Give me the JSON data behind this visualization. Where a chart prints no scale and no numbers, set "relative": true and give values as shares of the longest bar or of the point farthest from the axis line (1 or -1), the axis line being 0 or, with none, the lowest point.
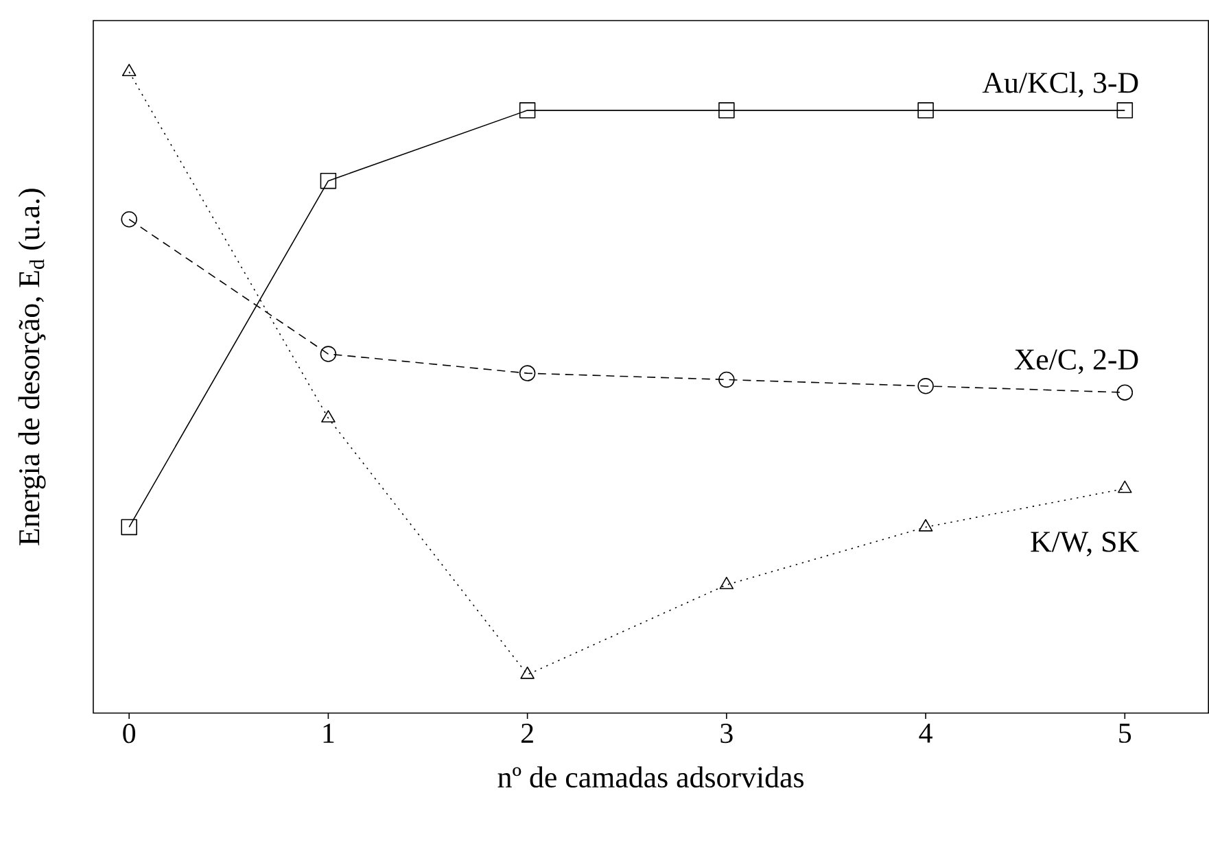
{
  "chart_data": {
    "type": "line",
    "relative": true,
    "xlabel": "nº de camadas adsorvidas",
    "ylabel": "Energia de desorção, E$_{d}$ (u.a.)",
    "x": [
      0,
      1,
      2,
      3,
      4,
      5
    ],
    "xlim": [
      -0.18,
      5.42
    ],
    "xticks": [
      0,
      1,
      2,
      3,
      4,
      5
    ],
    "legend": false,
    "series": [
      {
        "name": "Au/KCl, 3-D",
        "color": "#000000",
        "marker": "square",
        "line_style": "solid",
        "values": [
          0.29,
          0.83,
          0.94,
          0.94,
          0.94,
          0.94
        ]
      },
      {
        "name": "Xe/C, 2-D",
        "color": "#000000",
        "marker": "circle",
        "line_style": "dashed",
        "values": [
          0.77,
          0.56,
          0.53,
          0.52,
          0.51,
          0.5
        ]
      },
      {
        "name": "K/W, SK",
        "color": "#000000",
        "marker": "triangle",
        "line_style": "dotted",
        "values": [
          1,
          0.46,
          0.06,
          0.2,
          0.29,
          0.35
        ]
      }
    ]
  }
}
